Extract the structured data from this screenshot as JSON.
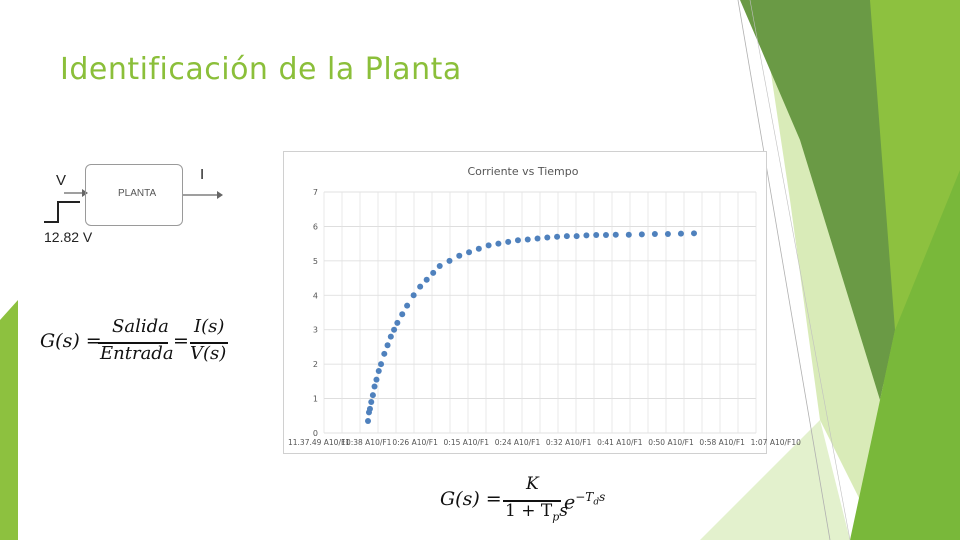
{
  "slide_title": "Identificación de la Planta",
  "block_diagram": {
    "input_label": "V",
    "step_value": "12.82 V",
    "block_label": "PLANTA",
    "output_label": "I"
  },
  "transfer_eq": {
    "lhs": "G(s) =",
    "num1": "Salida",
    "den1": "Entrada",
    "eq": "=",
    "num2": "I(s)",
    "den2": "V(s)"
  },
  "model_eq": {
    "lhs": "G(s) =",
    "num": "K",
    "den": "1 + T",
    "den_sub": "p",
    "den_tail": "s",
    "exp_base": "e",
    "exp": "−T",
    "exp_sub": "d",
    "exp_tail": "s"
  },
  "colors": {
    "title": "#8bbf3a",
    "series": "#4f81bd",
    "green_dark": "#5e8f2f",
    "green_mid": "#7cb83c",
    "green_light": "#9ccc4a"
  },
  "chart_data": {
    "type": "scatter",
    "title": "Corriente vs Tiempo",
    "ylim": [
      0,
      7
    ],
    "y_ticks": [
      "0",
      "1",
      "2",
      "3",
      "4",
      "5",
      "6",
      "7"
    ],
    "x_ticks": [
      "11.37.49 A10/F1",
      "10:38 A10/F1",
      "0:26 A10/F1",
      "0:15 A10/F1",
      "0:24 A10/F1",
      "0:32 A10/F1",
      "0:41 A10/F1",
      "0:50 A10/F1",
      "0:58 A10/F1",
      "1:07 A10/F10"
    ],
    "grid": true,
    "legend": "none",
    "series": [
      {
        "x": [
          0,
          0.3,
          0.6,
          1,
          1.5,
          2,
          2.6,
          3.3,
          4,
          5,
          6,
          7,
          8,
          9,
          10.5,
          12,
          14,
          16,
          18,
          20,
          22,
          25,
          28,
          31,
          34,
          37,
          40,
          43,
          46,
          49,
          52,
          55,
          58,
          61,
          64,
          67,
          70,
          73,
          76,
          80,
          84,
          88,
          92,
          96,
          100
        ],
        "values": [
          0.35,
          0.6,
          0.7,
          0.9,
          1.1,
          1.35,
          1.55,
          1.8,
          2.0,
          2.3,
          2.55,
          2.8,
          3.0,
          3.2,
          3.45,
          3.7,
          4.0,
          4.25,
          4.45,
          4.65,
          4.85,
          5.0,
          5.15,
          5.25,
          5.35,
          5.45,
          5.5,
          5.55,
          5.6,
          5.62,
          5.65,
          5.68,
          5.7,
          5.72,
          5.72,
          5.74,
          5.75,
          5.75,
          5.76,
          5.76,
          5.77,
          5.78,
          5.78,
          5.79,
          5.8
        ]
      }
    ]
  }
}
